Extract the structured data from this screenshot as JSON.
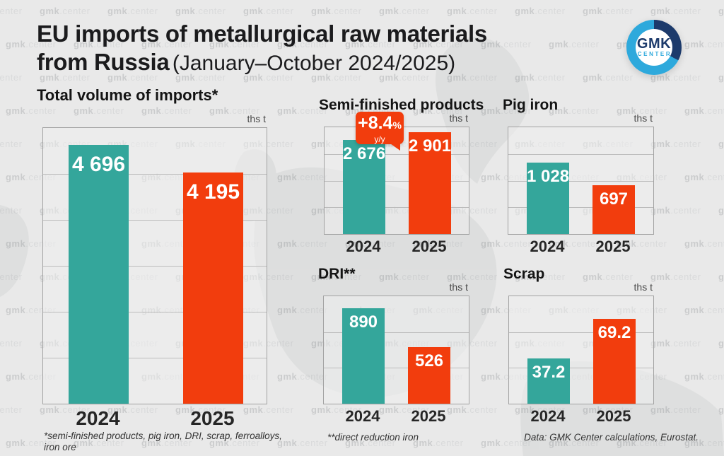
{
  "page": {
    "background": "#e9e9e9",
    "watermark_text": "gmk.center"
  },
  "header": {
    "title_line1": "EU imports of metallurgical raw materials",
    "title_line2_bold": "from Russia",
    "title_line2_regular": "(January–October 2024/2025)"
  },
  "logo": {
    "top": "GMK",
    "bottom": "CENTER"
  },
  "colors": {
    "teal": "#34A69B",
    "orange": "#F23D0D",
    "navy": "#1C3A6B",
    "cyan": "#2EA9DC"
  },
  "badge": {
    "value": "+8.4",
    "pct": "%",
    "sub": "y/y"
  },
  "chart_data": [
    {
      "id": "total",
      "type": "bar",
      "title": "Total volume of imports*",
      "unit": "ths t",
      "categories": [
        "2024",
        "2025"
      ],
      "values": [
        4696,
        4195
      ],
      "value_labels": [
        "4 696",
        "4 195"
      ],
      "ylim": [
        0,
        5000
      ],
      "gridlines": 5,
      "series_colors": [
        "#34A69B",
        "#F23D0D"
      ],
      "grid": true,
      "legend": "none"
    },
    {
      "id": "semi",
      "type": "bar",
      "title": "Semi-finished products",
      "unit": "ths t",
      "categories": [
        "2024",
        "2025"
      ],
      "values": [
        2676,
        2901
      ],
      "value_labels": [
        "2 676",
        "2 901"
      ],
      "ylim": [
        0,
        3040
      ],
      "gridlines": 3,
      "series_colors": [
        "#34A69B",
        "#F23D0D"
      ],
      "grid": true,
      "legend": "none",
      "annotation": "+8.4% y/y"
    },
    {
      "id": "pig",
      "type": "bar",
      "title": "Pig iron",
      "unit": "ths t",
      "categories": [
        "2024",
        "2025"
      ],
      "values": [
        1028,
        697
      ],
      "value_labels": [
        "1 028",
        "697"
      ],
      "ylim": [
        0,
        1530
      ],
      "gridlines": 3,
      "series_colors": [
        "#34A69B",
        "#F23D0D"
      ],
      "grid": true,
      "legend": "none"
    },
    {
      "id": "dri",
      "type": "bar",
      "title": "DRI**",
      "unit": "ths t",
      "categories": [
        "2024",
        "2025"
      ],
      "values": [
        890,
        526
      ],
      "value_labels": [
        "890",
        "526"
      ],
      "ylim": [
        0,
        1000
      ],
      "gridlines": 2,
      "series_colors": [
        "#34A69B",
        "#F23D0D"
      ],
      "grid": true,
      "legend": "none"
    },
    {
      "id": "scrap",
      "type": "bar",
      "title": "Scrap",
      "unit": "ths t",
      "categories": [
        "2024",
        "2025"
      ],
      "values": [
        37.2,
        69.2
      ],
      "value_labels": [
        "37.2",
        "69.2"
      ],
      "ylim": [
        0,
        88
      ],
      "gridlines": 2,
      "series_colors": [
        "#34A69B",
        "#F23D0D"
      ],
      "grid": true,
      "legend": "none"
    }
  ],
  "footnotes": {
    "note1": "*semi-finished products, pig iron, DRI, scrap, ferroalloys, iron ore",
    "note2": "**direct reduction iron",
    "source": "Data: GMK Center calculations, Eurostat."
  }
}
